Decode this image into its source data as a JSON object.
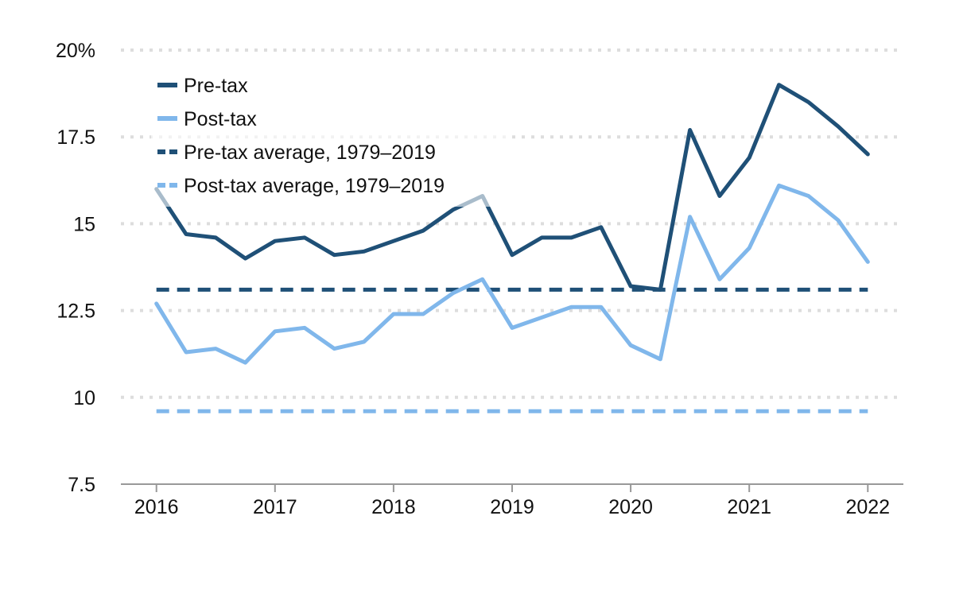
{
  "chart_data": {
    "type": "line",
    "x": [
      2016.0,
      2016.25,
      2016.5,
      2016.75,
      2017.0,
      2017.25,
      2017.5,
      2017.75,
      2018.0,
      2018.25,
      2018.5,
      2018.75,
      2019.0,
      2019.25,
      2019.5,
      2019.75,
      2020.0,
      2020.25,
      2020.5,
      2020.75,
      2021.0,
      2021.25,
      2021.5,
      2021.75,
      2022.0
    ],
    "series": [
      {
        "name": "Pre-tax",
        "color": "#1f5077",
        "style": "solid",
        "values": [
          16.0,
          14.7,
          14.6,
          14.0,
          14.5,
          14.6,
          14.1,
          14.2,
          14.5,
          14.8,
          15.4,
          15.8,
          14.1,
          14.6,
          14.6,
          14.9,
          13.2,
          13.1,
          17.7,
          15.8,
          16.9,
          19.0,
          18.5,
          17.8,
          17.0
        ]
      },
      {
        "name": "Post-tax",
        "color": "#80b7eb",
        "style": "solid",
        "values": [
          12.7,
          11.3,
          11.4,
          11.0,
          11.9,
          12.0,
          11.4,
          11.6,
          12.4,
          12.4,
          13.0,
          13.4,
          12.0,
          12.3,
          12.6,
          12.6,
          11.5,
          11.1,
          15.2,
          13.4,
          14.3,
          16.1,
          15.8,
          15.1,
          13.9
        ]
      },
      {
        "name": "Pre-tax average, 1979–2019",
        "color": "#1f5077",
        "style": "dashed",
        "values": [
          13.1,
          13.1,
          13.1,
          13.1,
          13.1,
          13.1,
          13.1,
          13.1,
          13.1,
          13.1,
          13.1,
          13.1,
          13.1,
          13.1,
          13.1,
          13.1,
          13.1,
          13.1,
          13.1,
          13.1,
          13.1,
          13.1,
          13.1,
          13.1,
          13.1
        ]
      },
      {
        "name": "Post-tax average, 1979–2019",
        "color": "#80b7eb",
        "style": "dashed",
        "values": [
          9.6,
          9.6,
          9.6,
          9.6,
          9.6,
          9.6,
          9.6,
          9.6,
          9.6,
          9.6,
          9.6,
          9.6,
          9.6,
          9.6,
          9.6,
          9.6,
          9.6,
          9.6,
          9.6,
          9.6,
          9.6,
          9.6,
          9.6,
          9.6,
          9.6
        ]
      }
    ],
    "title": "",
    "xlabel": "",
    "ylabel": "",
    "xlim": [
      2015.7,
      2022.3
    ],
    "ylim": [
      7.5,
      20
    ],
    "yticks": [
      {
        "value": 7.5,
        "label": "7.5"
      },
      {
        "value": 10,
        "label": "10"
      },
      {
        "value": 12.5,
        "label": "12.5"
      },
      {
        "value": 15,
        "label": "15"
      },
      {
        "value": 17.5,
        "label": "17.5"
      },
      {
        "value": 20,
        "label": "20%"
      }
    ],
    "xticks": [
      {
        "value": 2016,
        "label": "2016"
      },
      {
        "value": 2017,
        "label": "2017"
      },
      {
        "value": 2018,
        "label": "2018"
      },
      {
        "value": 2019,
        "label": "2019"
      },
      {
        "value": 2020,
        "label": "2020"
      },
      {
        "value": 2021,
        "label": "2021"
      },
      {
        "value": 2022,
        "label": "2022"
      }
    ],
    "grid": "horizontal dotted",
    "legend_position": "top-left"
  }
}
